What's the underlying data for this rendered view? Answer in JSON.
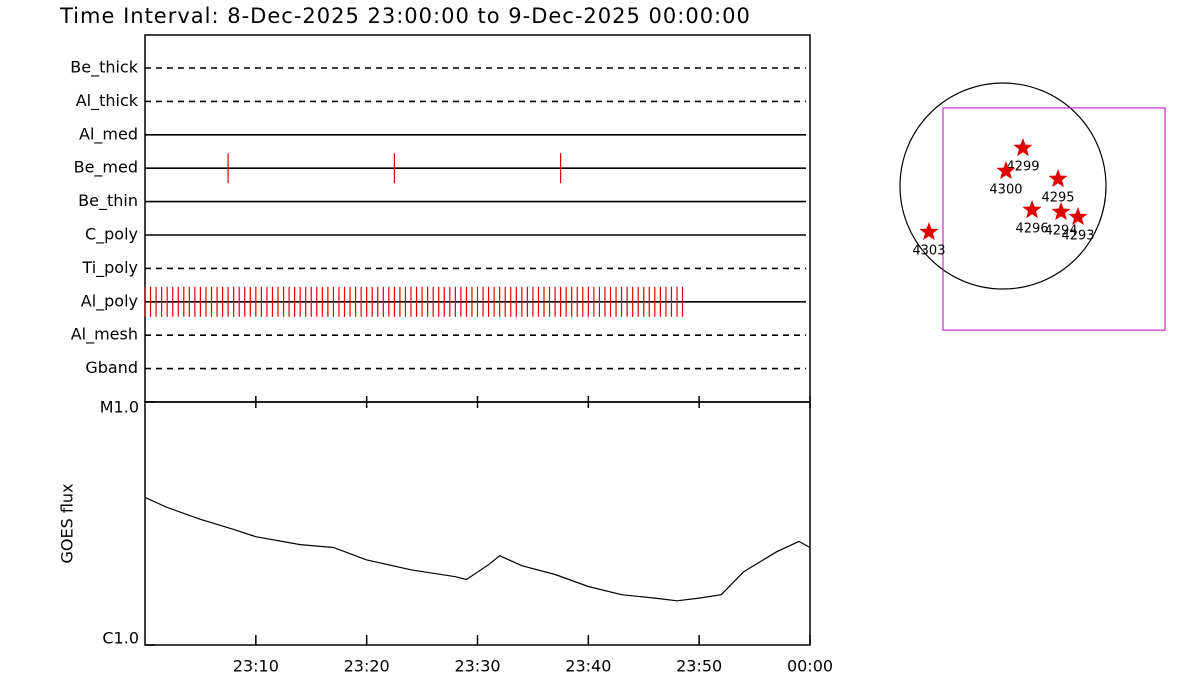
{
  "title": "Time Interval:  8-Dec-2025 23:00:00 to  9-Dec-2025 00:00:00",
  "chart_data": [
    {
      "type": "event",
      "xlim": [
        0,
        60
      ],
      "color": "#e00000",
      "series": [
        {
          "name": "Be_thick",
          "style": "dashed",
          "values": []
        },
        {
          "name": "Al_thick",
          "style": "dashed",
          "values": []
        },
        {
          "name": "Al_med",
          "style": "solid",
          "values": []
        },
        {
          "name": "Be_med",
          "style": "solid",
          "values": [
            7.5,
            22.5,
            37.5
          ]
        },
        {
          "name": "Be_thin",
          "style": "solid",
          "values": []
        },
        {
          "name": "C_poly",
          "style": "solid",
          "values": []
        },
        {
          "name": "Ti_poly",
          "style": "dashed",
          "values": []
        },
        {
          "name": "Al_poly",
          "style": "solid",
          "values": [
            0,
            0.5,
            1,
            1.5,
            2,
            2.5,
            3,
            3.5,
            4,
            4.5,
            5,
            5.5,
            6,
            6.5,
            7,
            7.5,
            8,
            8.5,
            9,
            9.5,
            10,
            10.5,
            11,
            11.5,
            12,
            12.5,
            13,
            13.5,
            14,
            14.5,
            15,
            15.5,
            16,
            16.5,
            17,
            17.5,
            18,
            18.5,
            19,
            19.5,
            20,
            20.5,
            21,
            21.5,
            22,
            22.5,
            23,
            23.5,
            24,
            24.5,
            25,
            25.5,
            26,
            26.5,
            27,
            27.5,
            28,
            28.5,
            29,
            29.5,
            30,
            30.5,
            31,
            31.5,
            32,
            32.5,
            33,
            33.5,
            34,
            34.5,
            35,
            35.5,
            36,
            36.5,
            37,
            37.5,
            38,
            38.5,
            39,
            39.5,
            40,
            40.5,
            41,
            41.5,
            42,
            42.5,
            43,
            43.5,
            44,
            44.5,
            45,
            45.5,
            46,
            46.5,
            47,
            47.5,
            48,
            48.5
          ]
        },
        {
          "name": "Al_mesh",
          "style": "dashed",
          "values": []
        },
        {
          "name": "Gband",
          "style": "dashed",
          "values": []
        }
      ]
    },
    {
      "type": "line",
      "ylabel": "GOES flux",
      "log_y": true,
      "color": "#000000",
      "x": [
        0,
        2,
        5,
        8,
        10,
        14,
        17,
        20,
        24,
        28,
        29,
        31,
        32,
        34,
        37,
        40,
        43,
        46,
        48,
        50,
        52,
        54,
        57,
        59,
        60
      ],
      "values": [
        4.05e-06,
        3.68e-06,
        3.29e-06,
        2.99e-06,
        2.79e-06,
        2.59e-06,
        2.52e-06,
        2.24e-06,
        2.04e-06,
        1.91e-06,
        1.86e-06,
        2.14e-06,
        2.33e-06,
        2.12e-06,
        1.95e-06,
        1.74e-06,
        1.61e-06,
        1.56e-06,
        1.52e-06,
        1.56e-06,
        1.61e-06,
        2e-06,
        2.42e-06,
        2.67e-06,
        2.52e-06
      ],
      "xlim": [
        0,
        60
      ],
      "xticks": [
        {
          "value": 10,
          "label": "23:10"
        },
        {
          "value": 20,
          "label": "23:20"
        },
        {
          "value": 30,
          "label": "23:30"
        },
        {
          "value": 40,
          "label": "23:40"
        },
        {
          "value": 50,
          "label": "23:50"
        },
        {
          "value": 60,
          "label": "00:00"
        }
      ],
      "ylim": [
        1e-06,
        1e-05
      ],
      "yticks": [
        {
          "value": 1e-06,
          "label": "C1.0"
        },
        {
          "value": 1e-05,
          "label": "M1.0"
        }
      ]
    },
    {
      "type": "map",
      "sun_radius": 975,
      "color": "#e00000",
      "fov_color": "#c000c0",
      "fov": {
        "xlim": [
          -568,
          1534
        ],
        "ylim": [
          -1364,
          739
        ]
      },
      "regions": [
        {
          "label": "4299",
          "x": 189,
          "y": 360
        },
        {
          "label": "4300",
          "x": 28,
          "y": 142
        },
        {
          "label": "4295",
          "x": 521,
          "y": 66
        },
        {
          "label": "4296",
          "x": 275,
          "y": -227
        },
        {
          "label": "4294",
          "x": 549,
          "y": -246
        },
        {
          "label": "4293",
          "x": 710,
          "y": -294
        },
        {
          "label": "4303",
          "x": -701,
          "y": -436
        }
      ]
    }
  ]
}
